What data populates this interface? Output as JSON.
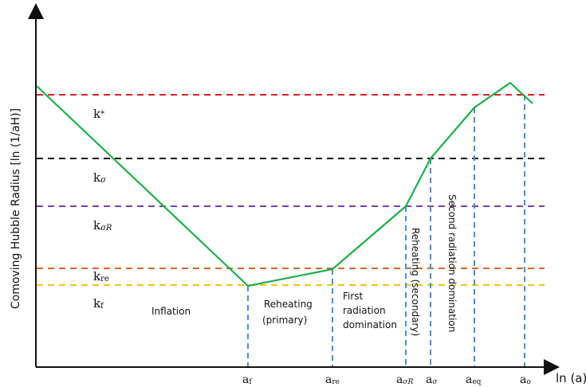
{
  "axes": {
    "ylabel": "Comoving Hubble Radius [ln (1/aH)]",
    "xlabel": "ln (a)"
  },
  "colors": {
    "curve": "#1fae4a",
    "vlines": "#4a90d9",
    "k_star": "#e02020",
    "k_sigma": "#111111",
    "k_sigmaR": "#7a3fb0",
    "k_re": "#d9652a",
    "k_f": "#f0c419"
  },
  "hlines": [
    {
      "id": "k-star",
      "label_main": "k",
      "label_sub": "*",
      "color": "#e02020"
    },
    {
      "id": "k-sigma",
      "label_main": "k",
      "label_sub": "σ",
      "color": "#111111"
    },
    {
      "id": "k-sigmaR",
      "label_main": "k",
      "label_sub": "σR",
      "color": "#7a3fb0"
    },
    {
      "id": "k-re",
      "label_main": "k",
      "label_sub": "re",
      "color": "#d9652a"
    },
    {
      "id": "k-f",
      "label_main": "k",
      "label_sub": "f",
      "color": "#f0c419"
    }
  ],
  "xticks": [
    {
      "id": "a-f",
      "main": "a",
      "sub": "f"
    },
    {
      "id": "a-re",
      "main": "a",
      "sub": "re"
    },
    {
      "id": "a-sigmaR",
      "main": "a",
      "sub": "σR"
    },
    {
      "id": "a-sigma",
      "main": "a",
      "sub": "σ"
    },
    {
      "id": "a-eq",
      "main": "a",
      "sub": "eq"
    },
    {
      "id": "a-o",
      "main": "a",
      "sub": "o"
    }
  ],
  "regions": {
    "inflation": "Inflation",
    "reheating_primary_1": "Reheating",
    "reheating_primary_2": "(primary)",
    "first_rad_1": "First",
    "first_rad_2": "radiation",
    "first_rad_3": "domination",
    "reheating_secondary": "Reheating (secondary)",
    "second_rad": "Second radiation domination"
  }
}
